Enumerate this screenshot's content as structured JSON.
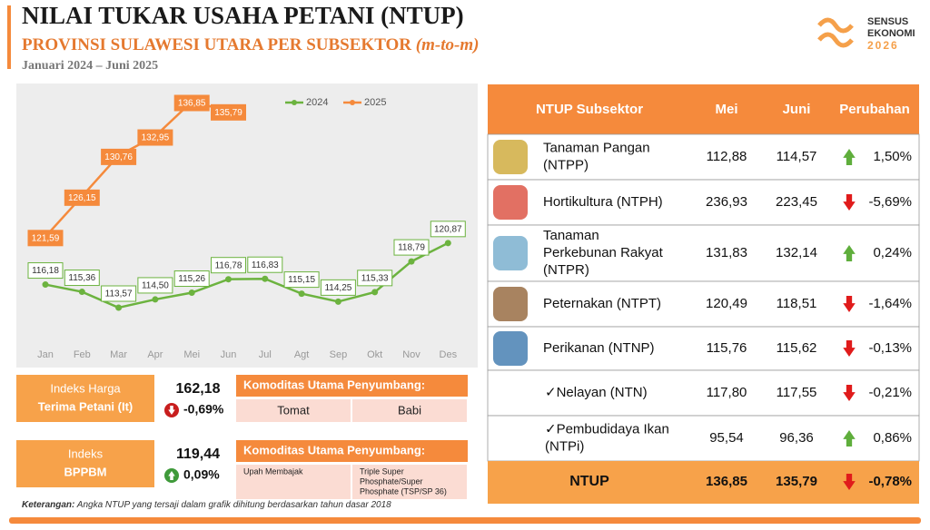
{
  "header": {
    "title": "NILAI TUKAR USAHA PETANI (NTUP)",
    "subtitle": "PROVINSI SULAWESI UTARA PER SUBSEKTOR",
    "subtitle_note": "(m-to-m)",
    "period": "Januari 2024 – Juni 2025",
    "logo": [
      "SENSUS",
      "EKONOMI",
      "2026"
    ]
  },
  "chart_data": {
    "type": "line",
    "categories": [
      "Jan",
      "Feb",
      "Mar",
      "Apr",
      "Mei",
      "Jun",
      "Jul",
      "Agt",
      "Sep",
      "Okt",
      "Nov",
      "Des"
    ],
    "series": [
      {
        "name": "2024",
        "color": "#6cb33f",
        "values": [
          116.18,
          115.36,
          113.57,
          114.5,
          115.26,
          116.78,
          116.83,
          115.15,
          114.25,
          115.33,
          118.79,
          120.87
        ],
        "value_labels": [
          "116,18",
          "115,36",
          "113,57",
          "114,50",
          "115,26",
          "116,78",
          "116,83",
          "115,15",
          "114,25",
          "115,33",
          "118,79",
          "120,87"
        ]
      },
      {
        "name": "2025",
        "color": "#f58a3c",
        "values": [
          121.59,
          126.15,
          130.76,
          132.95,
          136.85,
          135.79,
          null,
          null,
          null,
          null,
          null,
          null
        ],
        "value_labels": [
          "121,59",
          "126,15",
          "130,76",
          "132,95",
          "136,85",
          "135,79",
          null,
          null,
          null,
          null,
          null,
          null
        ]
      }
    ],
    "legend": "top-right"
  },
  "panels": [
    {
      "label": [
        "Indeks Harga",
        "Terima Petani (It)"
      ],
      "value": "162,18",
      "change": "-0,69%",
      "commodity_title": "Komoditas Utama Penyumbang:",
      "commodities": [
        "Tomat",
        "Babi"
      ]
    },
    {
      "label": [
        "Indeks",
        "BPPBM"
      ],
      "value": "119,44",
      "change": "0,09%",
      "commodity_title": "Komoditas Utama Penyumbang:",
      "commodities": [
        "Upah Membajak",
        [
          "Triple Super",
          "Phosphate/Super",
          "Phosphate (TSP/SP 36)"
        ]
      ]
    }
  ],
  "footnote": {
    "label": "Keterangan:",
    "text": "Angka NTUP yang tersaji dalam grafik dihitung berdasarkan tahun dasar 2018"
  },
  "table": {
    "columns": [
      "NTUP Subsektor",
      "Mei",
      "Juni",
      "Perubahan"
    ],
    "rows": [
      {
        "name": [
          "Tanaman Pangan",
          "(NTPP)"
        ],
        "mei": "112,88",
        "juni": "114,57",
        "change": "1,50%"
      },
      {
        "name": [
          "Hortikultura (NTPH)"
        ],
        "mei": "236,93",
        "juni": "223,45",
        "change": "-5,69%"
      },
      {
        "name": [
          "Tanaman",
          "Perkebunan Rakyat",
          "(NTPR)"
        ],
        "mei": "131,83",
        "juni": "132,14",
        "change": "0,24%"
      },
      {
        "name": [
          "Peternakan (NTPT)"
        ],
        "mei": "120,49",
        "juni": "118,51",
        "change": "-1,64%"
      },
      {
        "name": [
          "Perikanan (NTNP)"
        ],
        "mei": "115,76",
        "juni": "115,62",
        "change": "-0,13%"
      },
      {
        "name": [
          "✓Nelayan (NTN)"
        ],
        "mei": "117,80",
        "juni": "117,55",
        "change": "-0,21%"
      },
      {
        "name": [
          "✓Pembudidaya Ikan",
          "(NTPi)"
        ],
        "mei": "95,54",
        "juni": "96,36",
        "change": "0,86%"
      }
    ],
    "total": {
      "name": "NTUP",
      "mei": "136,85",
      "juni": "135,79",
      "change": "-0,78%"
    }
  }
}
